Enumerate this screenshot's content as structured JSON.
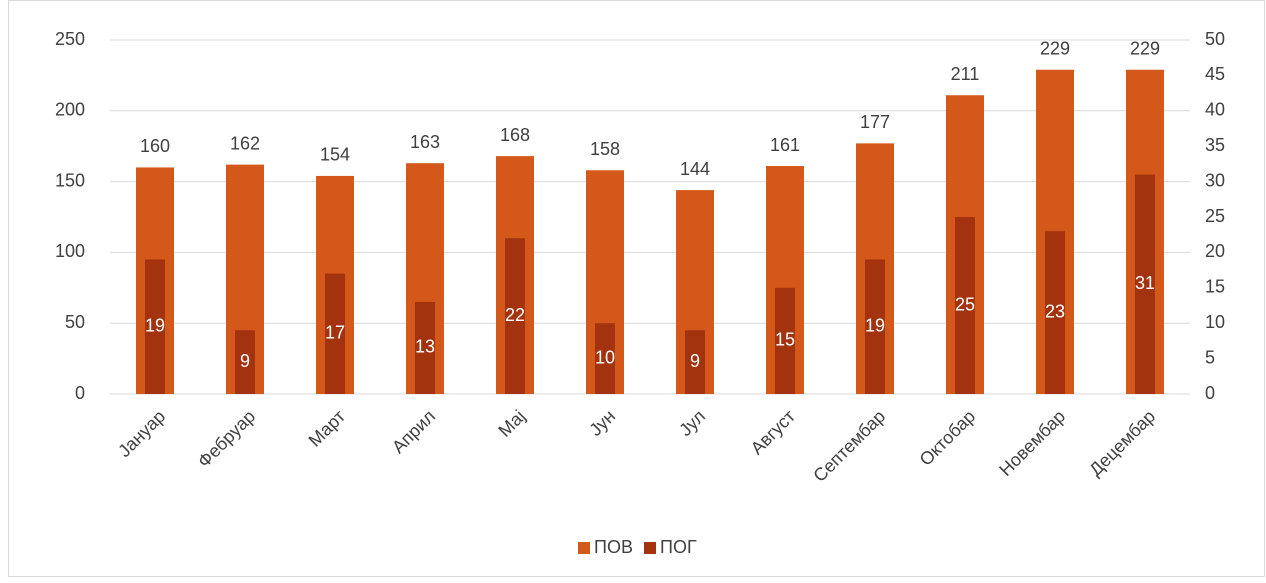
{
  "chart_data": {
    "type": "bar",
    "categories": [
      "Јануар",
      "Фебруар",
      "Март",
      "Април",
      "Мај",
      "Јун",
      "Јул",
      "Август",
      "Септембар",
      "Октобар",
      "Новембар",
      "Децембар"
    ],
    "series": [
      {
        "name": "ПОВ",
        "color": "#d4581a",
        "values": [
          160,
          162,
          154,
          163,
          168,
          158,
          144,
          161,
          177,
          211,
          229,
          229
        ]
      },
      {
        "name": "ПОГ",
        "color": "#a3330f",
        "axis": "y2",
        "values": [
          19,
          9,
          17,
          13,
          22,
          10,
          9,
          15,
          19,
          25,
          23,
          31
        ]
      }
    ],
    "ylim": [
      0,
      250
    ],
    "yticks": [
      0,
      50,
      100,
      150,
      200,
      250
    ],
    "y2lim": [
      0,
      50
    ],
    "y2ticks": [
      0,
      5,
      10,
      15,
      20,
      25,
      30,
      35,
      40,
      45,
      50
    ],
    "grid": true,
    "legend": "bottom"
  }
}
